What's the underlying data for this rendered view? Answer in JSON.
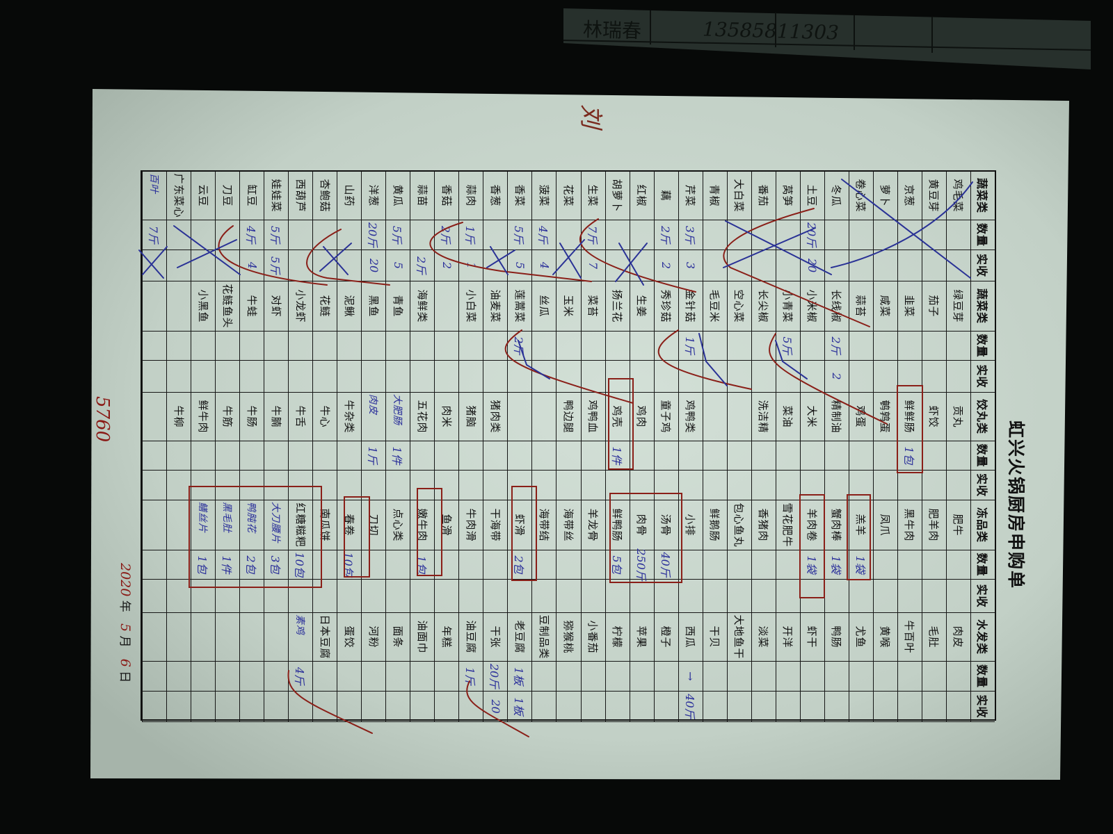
{
  "background_sheet": {
    "name": "林瑞春",
    "phone": "13585811303"
  },
  "form": {
    "title": "虹兴火锅厨房申购单",
    "header": [
      "蔬菜类",
      "数量",
      "实收",
      "蔬菜类",
      "数量",
      "实收",
      "饺丸类",
      "数量",
      "实收",
      "冻品类",
      "数量",
      "实收",
      "水发类",
      "数量",
      "实收"
    ],
    "rows": [
      [
        "鸡毛菜",
        "",
        "",
        "绿豆芽",
        "",
        "",
        "贡丸",
        "",
        "",
        "肥牛",
        "",
        "",
        "肉皮",
        "",
        ""
      ],
      [
        "黄豆芽",
        "",
        "",
        "茄子",
        "",
        "",
        "虾饺",
        "",
        "",
        "肥羊肉",
        "",
        "",
        "毛肚",
        "",
        ""
      ],
      [
        "京葱",
        "",
        "",
        "韭菜",
        "",
        "",
        "鲜鲜肠",
        "1包",
        "",
        "黑牛肉",
        "",
        "",
        "牛百叶",
        "",
        ""
      ],
      [
        "萝卜",
        "",
        "",
        "咸菜",
        "",
        "",
        "鹌鹑蛋",
        "",
        "",
        "凤爪",
        "",
        "",
        "黄喉",
        "",
        ""
      ],
      [
        "卷心菜",
        "",
        "",
        "蒜苔",
        "",
        "",
        "鸡蛋",
        "",
        "",
        "羔羊",
        "1袋",
        "",
        "尤鱼",
        "",
        ""
      ],
      [
        "冬瓜",
        "",
        "",
        "长线椒",
        "2斤",
        "2",
        "精制油",
        "",
        "",
        "蟹肉棒",
        "1袋",
        "",
        "鸭肠",
        "",
        ""
      ],
      [
        "土豆",
        "20斤",
        "20",
        "小米椒",
        "",
        "",
        "大米",
        "",
        "",
        "羊肉卷",
        "1袋",
        "",
        "虾干",
        "",
        ""
      ],
      [
        "莴笋",
        "",
        "",
        "小青菜",
        "5斤",
        "",
        "菜油",
        "",
        "",
        "雪花肥牛",
        "",
        "",
        "开洋",
        "",
        ""
      ],
      [
        "番茄",
        "",
        "",
        "长尖椒",
        "",
        "",
        "洗洁精",
        "",
        "",
        "香猪肉",
        "",
        "",
        "淡菜",
        "",
        ""
      ],
      [
        "大白菜",
        "",
        "",
        "空心菜",
        "",
        "",
        "",
        "",
        "",
        "包心鱼丸",
        "",
        "",
        "大地鱼干",
        "",
        ""
      ],
      [
        "青椒",
        "",
        "",
        "毛豆米",
        "",
        "",
        "",
        "",
        "",
        "鲜鹅肠",
        "",
        "",
        "干贝",
        "",
        ""
      ],
      [
        "芹菜",
        "3斤",
        "3",
        "金针菇",
        "1斤",
        "",
        "鸡鸭类",
        "",
        "",
        "小排",
        "",
        "",
        "西瓜",
        "→",
        "40斤"
      ],
      [
        "藕",
        "2斤",
        "2",
        "秀珍菇",
        "",
        "",
        "童子鸡",
        "",
        "",
        "汤骨",
        "40斤",
        "",
        "橙子",
        "",
        ""
      ],
      [
        "红椒",
        "",
        "",
        "生姜",
        "",
        "",
        "鸡肉",
        "",
        "",
        "肉骨",
        "250斤",
        "",
        "苹果",
        "",
        ""
      ],
      [
        "胡萝卜",
        "",
        "",
        "扬兰花",
        "",
        "",
        "鸡壳",
        "1件",
        "",
        "鲜鸭肠",
        "5包",
        "",
        "柠檬",
        "",
        ""
      ],
      [
        "生菜",
        "7斤",
        "7",
        "菜苔",
        "",
        "",
        "鸡鸭血",
        "",
        "",
        "羊龙骨",
        "",
        "",
        "小番茄",
        "",
        ""
      ],
      [
        "花菜",
        "",
        "",
        "玉米",
        "",
        "",
        "鸭边腿",
        "",
        "",
        "海带丝",
        "",
        "",
        "猕猴桃",
        "",
        ""
      ],
      [
        "菠菜",
        "4斤",
        "4",
        "丝瓜",
        "",
        "",
        "",
        "",
        "",
        "海带结",
        "",
        "",
        "豆制品类",
        "",
        ""
      ],
      [
        "香菜",
        "5斤",
        "5",
        "莲蒿菜",
        "2斤",
        "",
        "",
        "",
        "",
        "虾滑",
        "2包",
        "",
        "老豆腐",
        "1板",
        "1板"
      ],
      [
        "香葱",
        "",
        "",
        "油麦菜",
        "",
        "",
        "猪肉类",
        "",
        "",
        "干海带",
        "",
        "",
        "干张",
        "20斤",
        "20"
      ],
      [
        "蒜肉",
        "1斤",
        "1",
        "小白菜",
        "",
        "",
        "猪脑",
        "",
        "",
        "牛肉滑",
        "",
        "",
        "油豆腐",
        "1斤",
        ""
      ],
      [
        "香菇",
        "2斤",
        "2",
        "",
        "",
        "",
        "肉米",
        "",
        "",
        "鱼滑",
        "",
        "",
        "年糕",
        "",
        ""
      ],
      [
        "蒜苗",
        "",
        "2斤",
        "海鲜类",
        "",
        "",
        "五花肉",
        "",
        "",
        "嫩牛肉",
        "1包",
        "",
        "油面巾",
        "",
        ""
      ],
      [
        "黄瓜",
        "5斤",
        "5",
        "青鱼",
        "",
        "",
        {
          "text": "大肥肠",
          "handwritten": true
        },
        "1件",
        "",
        "点心类",
        "",
        "",
        "面条",
        "",
        ""
      ],
      [
        "洋葱",
        "20斤",
        "20",
        "黑鱼",
        "",
        "",
        {
          "text": "肉皮",
          "handwritten": true
        },
        "1斤",
        "",
        "刀切",
        "",
        "",
        "河粉",
        "",
        ""
      ],
      [
        "山药",
        "",
        "",
        "泥鳅",
        "",
        "",
        "牛杂类",
        "",
        "",
        "春卷",
        "10包",
        "",
        "蛋饺",
        "",
        ""
      ],
      [
        "杏鲍菇",
        "",
        "",
        "花鲢",
        "",
        "",
        "牛心",
        "",
        "",
        "南瓜饼",
        "",
        "",
        "日本豆腐",
        "",
        ""
      ],
      [
        "西葫芦",
        "",
        "",
        "小龙虾",
        "",
        "",
        "牛舌",
        "",
        "",
        "红糖糍粑",
        "10包",
        "",
        {
          "text": "素鸡",
          "handwritten": true
        },
        "4斤",
        ""
      ],
      [
        "娃娃菜",
        "5斤",
        "5斤",
        "对虾",
        "",
        "",
        "牛腩",
        "",
        "",
        {
          "text": "大刀腰片",
          "handwritten": true
        },
        "3包",
        "",
        "",
        "",
        ""
      ],
      [
        "缸豆",
        "4斤",
        "4",
        "牛蛙",
        "",
        "",
        "牛肠",
        "",
        "",
        {
          "text": "鸭肫花",
          "handwritten": true
        },
        "2包",
        "",
        "",
        "",
        ""
      ],
      [
        "刀豆",
        "",
        "",
        "花鲢鱼头",
        "",
        "",
        "牛筋",
        "",
        "",
        {
          "text": "黑毛肚",
          "handwritten": true
        },
        "1件",
        "",
        "",
        "",
        ""
      ],
      [
        "云豆",
        "",
        "",
        "小黑鱼",
        "",
        "",
        "鲜牛肉",
        "",
        "",
        {
          "text": "鳝丝片",
          "handwritten": true
        },
        "1包",
        "",
        "",
        "",
        ""
      ],
      [
        "广东菜心",
        "",
        "",
        "",
        "",
        "",
        "牛柳",
        "",
        "",
        "",
        "",
        "",
        "",
        "",
        ""
      ],
      [
        {
          "text": "百叶",
          "handwritten": true
        },
        "7斤",
        "",
        "",
        "",
        "",
        "",
        "",
        "",
        "",
        "",
        "",
        "",
        "",
        ""
      ]
    ],
    "date": {
      "year": "2020",
      "year_label": "年",
      "month": "5",
      "month_label": "月",
      "day": "6",
      "day_label": "日"
    },
    "total": "5760",
    "signature": "刘"
  },
  "colors": {
    "paper": "#c9d6cd",
    "background": "#070908",
    "blue_ink": "#2a2f9a",
    "red_ink": "#8a1a16",
    "print": "#111111"
  }
}
